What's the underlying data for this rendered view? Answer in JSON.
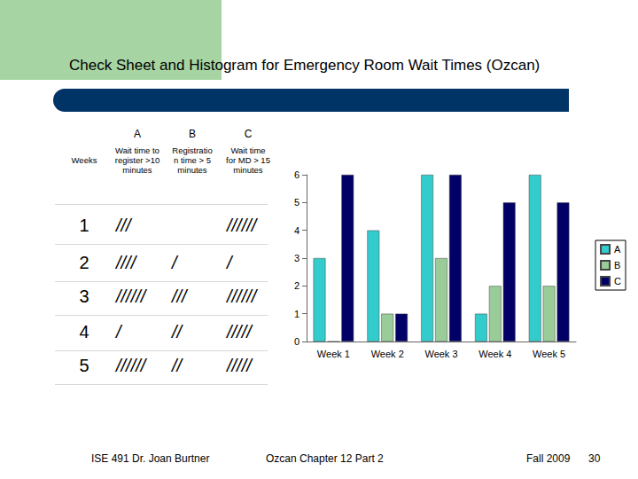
{
  "title": "Check Sheet and Histogram for Emergency Room Wait Times (Ozcan)",
  "table": {
    "columns": [
      {
        "letter": null,
        "label": "Weeks"
      },
      {
        "letter": "A",
        "label": "Wait time to register >10 minutes"
      },
      {
        "letter": "B",
        "label": "Registration time > 5 minutes"
      },
      {
        "letter": "C",
        "label": "Wait time for MD > 15 minutes"
      }
    ],
    "rows": [
      [
        1,
        "///",
        null,
        "//////"
      ],
      [
        2,
        "////",
        "/",
        "/"
      ],
      [
        3,
        "//////",
        "///",
        "//////"
      ],
      [
        4,
        "/",
        "//",
        "/////"
      ],
      [
        5,
        "//////",
        "//",
        "/////"
      ]
    ]
  },
  "chart_data": {
    "type": "bar",
    "categories": [
      "Week 1",
      "Week 2",
      "Week 3",
      "Week 4",
      "Week 5"
    ],
    "series": [
      {
        "name": "A",
        "color": "#33cccc",
        "values": [
          3,
          4,
          6,
          1,
          6
        ]
      },
      {
        "name": "B",
        "color": "#99cc99",
        "values": [
          0,
          1,
          3,
          2,
          2
        ]
      },
      {
        "name": "C",
        "color": "#000066",
        "values": [
          6,
          1,
          6,
          5,
          5
        ]
      }
    ],
    "ylim": [
      0,
      6
    ],
    "yticks": [
      0,
      1,
      2,
      3,
      4,
      5,
      6
    ],
    "grid": false,
    "legend": "right"
  },
  "footer": {
    "left": "ISE 491  Dr. Joan Burtner",
    "center": "Ozcan Chapter 12  Part 2",
    "right": "Fall 2009",
    "page": "30"
  }
}
